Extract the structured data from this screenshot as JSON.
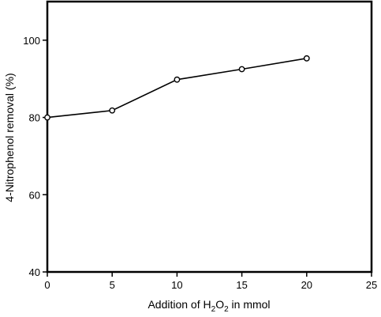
{
  "chart_data": {
    "type": "line",
    "x": [
      0,
      5,
      10,
      15,
      20
    ],
    "series": [
      {
        "values": [
          80.0,
          81.8,
          89.8,
          92.5,
          95.3
        ]
      }
    ],
    "xlabel_parts": {
      "pre": "Addition of H",
      "sub1": "2",
      "mid": "O",
      "sub2": "2",
      "post": " in mmol"
    },
    "ylabel": "4-Nitrophenol removal (%)",
    "xlim": [
      0,
      25
    ],
    "ylim": [
      40,
      110
    ],
    "xticks": [
      "0",
      "5",
      "10",
      "15",
      "20",
      "25"
    ],
    "yticks": [
      "40",
      "60",
      "80",
      "100"
    ],
    "grid": false,
    "line_color": "#000000",
    "marker": "open-circle"
  }
}
